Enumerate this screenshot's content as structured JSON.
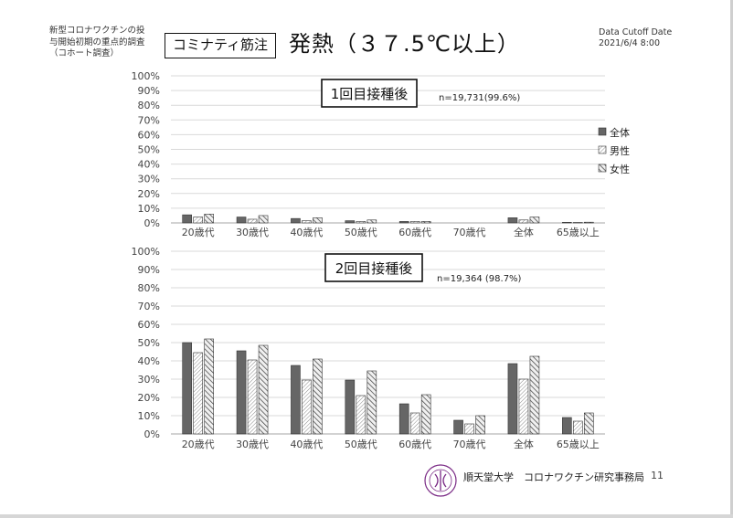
{
  "header": {
    "note_lines": [
      "新型コロナワクチンの投",
      "与開始初期の重点的調査",
      "（コホート調査）"
    ],
    "tag": "コミナティ筋注",
    "title": "発熱（３７.5℃以上）",
    "cutoff_label": "Data Cutoff Date",
    "cutoff_date": "2021/6/4 8:00"
  },
  "footer": {
    "org": "順天堂大学　コロナワクチン研究事務局",
    "page": "11"
  },
  "colors": {
    "total": "#666666",
    "male": "#e8e8e8",
    "female": "#bdbdbd",
    "grid": "#d9d9d9",
    "axis_text": "#444444",
    "logo": "#7a2a85"
  },
  "chart_data": [
    {
      "type": "bar",
      "title": "1回目接種後",
      "annotation": "n=19,731(99.6%)",
      "categories": [
        "20歳代",
        "30歳代",
        "40歳代",
        "50歳代",
        "60歳代",
        "70歳代",
        "全体",
        "65歳以上"
      ],
      "series": [
        {
          "name": "全体",
          "values": [
            5.5,
            4.0,
            3.0,
            1.5,
            1.0,
            0,
            3.5,
            0.4
          ]
        },
        {
          "name": "男性",
          "values": [
            4.0,
            2.5,
            1.5,
            1.0,
            1.0,
            0,
            2.0,
            0.3
          ]
        },
        {
          "name": "女性",
          "values": [
            6.0,
            5.0,
            3.5,
            2.0,
            1.0,
            0,
            4.0,
            0.5
          ]
        }
      ],
      "yticks": [
        "0%",
        "10%",
        "20%",
        "30%",
        "40%",
        "50%",
        "60%",
        "70%",
        "80%",
        "90%",
        "100%"
      ],
      "ylim": [
        0,
        100
      ],
      "grid": true,
      "legend": "right"
    },
    {
      "type": "bar",
      "title": "2回目接種後",
      "annotation": "n=19,364 (98.7%)",
      "categories": [
        "20歳代",
        "30歳代",
        "40歳代",
        "50歳代",
        "60歳代",
        "70歳代",
        "全体",
        "65歳以上"
      ],
      "series": [
        {
          "name": "全体",
          "values": [
            50,
            45.5,
            37.5,
            29.5,
            16.5,
            7.5,
            38.5,
            9
          ]
        },
        {
          "name": "男性",
          "values": [
            44.5,
            40.5,
            29.5,
            21,
            11.5,
            5.5,
            30,
            7
          ]
        },
        {
          "name": "女性",
          "values": [
            52,
            48.5,
            41,
            34.5,
            21.5,
            10,
            42.5,
            11.5
          ]
        }
      ],
      "yticks": [
        "0%",
        "10%",
        "20%",
        "30%",
        "40%",
        "50%",
        "60%",
        "70%",
        "80%",
        "90%",
        "100%"
      ],
      "ylim": [
        0,
        100
      ],
      "grid": true,
      "legend": "none"
    }
  ]
}
